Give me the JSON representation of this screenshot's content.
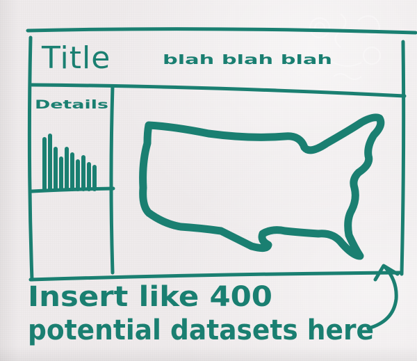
{
  "sketch": {
    "title": "Title",
    "subtitle": "blah blah blah",
    "sidebar_label": "Details",
    "note_line_1": "Insert like 400",
    "note_line_2": "potential datasets here"
  },
  "colors": {
    "ink": "#1a7f71",
    "napkin": "#efebec"
  },
  "icons": {
    "map": "us-map-outline-icon",
    "arrow": "curved-arrow-icon",
    "histogram": "mini-histogram-icon"
  }
}
